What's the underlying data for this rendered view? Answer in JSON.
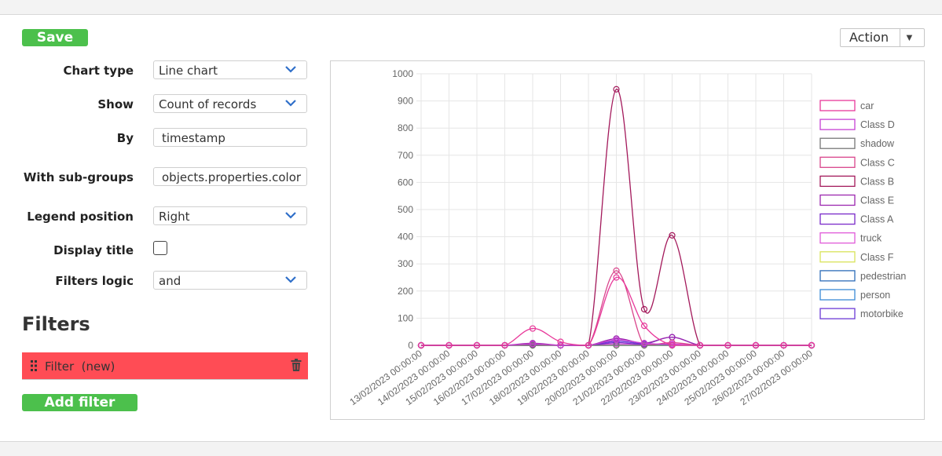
{
  "toolbar": {
    "save_label": "Save",
    "action_label": "Action"
  },
  "form": {
    "chart_type": {
      "label": "Chart type",
      "value": "Line chart"
    },
    "show": {
      "label": "Show",
      "value": "Count of records"
    },
    "by": {
      "label": "By",
      "value": "timestamp"
    },
    "sub_groups": {
      "label": "With sub-groups",
      "value": "objects.properties.color"
    },
    "legend_position": {
      "label": "Legend position",
      "value": "Right"
    },
    "display_title": {
      "label": "Display title",
      "checked": false
    },
    "filters_logic": {
      "label": "Filters logic",
      "value": "and"
    }
  },
  "filters": {
    "heading": "Filters",
    "items": [
      {
        "label": "Filter  (new)"
      }
    ],
    "add_label": "Add filter"
  },
  "colors": {
    "accent_blue": "#2f6fc9",
    "green": "#4cc04c",
    "filter_red": "#ff4c55"
  },
  "chart_data": {
    "type": "line",
    "legend_position": "right",
    "grid": true,
    "ylim": [
      0,
      1000
    ],
    "yticks": [
      0,
      100,
      200,
      300,
      400,
      500,
      600,
      700,
      800,
      900,
      1000
    ],
    "x": [
      "13/02/2023 00:00:00",
      "14/02/2023 00:00:00",
      "15/02/2023 00:00:00",
      "16/02/2023 00:00:00",
      "17/02/2023 00:00:00",
      "18/02/2023 00:00:00",
      "19/02/2023 00:00:00",
      "20/02/2023 00:00:00",
      "21/02/2023 00:00:00",
      "22/02/2023 00:00:00",
      "23/02/2023 00:00:00",
      "24/02/2023 00:00:00",
      "25/02/2023 00:00:00",
      "26/02/2023 00:00:00",
      "27/02/2023 00:00:00"
    ],
    "series": [
      {
        "name": "car",
        "color": "#e8389a",
        "values": [
          0,
          0,
          0,
          0,
          62,
          13,
          0,
          250,
          72,
          0,
          0,
          0,
          0,
          0,
          0
        ]
      },
      {
        "name": "Class D",
        "color": "#c740d4",
        "values": [
          0,
          0,
          0,
          0,
          5,
          0,
          0,
          20,
          8,
          3,
          0,
          0,
          0,
          0,
          0
        ]
      },
      {
        "name": "shadow",
        "color": "#777777",
        "values": [
          0,
          0,
          0,
          0,
          0,
          0,
          0,
          0,
          0,
          0,
          0,
          0,
          0,
          0,
          0
        ]
      },
      {
        "name": "Class C",
        "color": "#d9458c",
        "values": [
          0,
          0,
          0,
          0,
          5,
          0,
          0,
          275,
          0,
          10,
          0,
          0,
          0,
          0,
          0
        ]
      },
      {
        "name": "Class B",
        "color": "#a3195b",
        "values": [
          0,
          0,
          0,
          0,
          0,
          0,
          0,
          943,
          133,
          405,
          0,
          0,
          0,
          0,
          0
        ]
      },
      {
        "name": "Class E",
        "color": "#9b27af",
        "values": [
          0,
          0,
          0,
          0,
          8,
          0,
          0,
          25,
          8,
          30,
          0,
          0,
          0,
          0,
          0
        ]
      },
      {
        "name": "Class A",
        "color": "#7a2ac9",
        "values": [
          0,
          0,
          0,
          0,
          3,
          0,
          0,
          10,
          5,
          30,
          0,
          0,
          0,
          0,
          0
        ]
      },
      {
        "name": "truck",
        "color": "#e05ad9",
        "values": [
          0,
          0,
          0,
          0,
          3,
          0,
          0,
          5,
          3,
          5,
          0,
          0,
          0,
          0,
          0
        ]
      },
      {
        "name": "Class F",
        "color": "#d9e35a",
        "values": [
          0,
          0,
          0,
          0,
          0,
          0,
          0,
          0,
          0,
          0,
          0,
          0,
          0,
          0,
          0
        ]
      },
      {
        "name": "pedestrian",
        "color": "#2d6cb8",
        "values": [
          0,
          0,
          0,
          0,
          0,
          0,
          0,
          0,
          0,
          0,
          0,
          0,
          0,
          0,
          0
        ]
      },
      {
        "name": "person",
        "color": "#3a8ad6",
        "values": [
          0,
          0,
          0,
          0,
          0,
          0,
          0,
          0,
          0,
          0,
          0,
          0,
          0,
          0,
          0
        ]
      },
      {
        "name": "motorbike",
        "color": "#6b3ad6",
        "values": [
          0,
          0,
          0,
          0,
          3,
          0,
          0,
          15,
          5,
          3,
          0,
          0,
          0,
          0,
          0
        ]
      }
    ]
  }
}
